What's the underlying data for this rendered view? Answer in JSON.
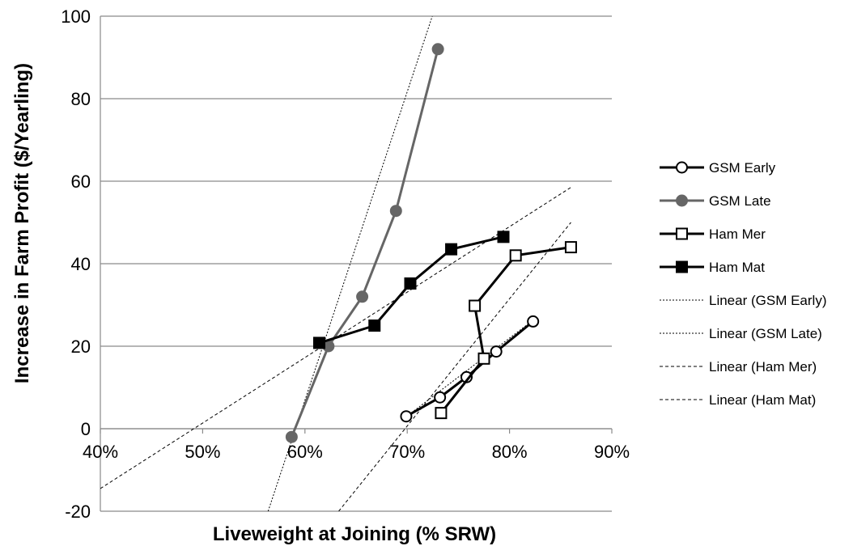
{
  "chart_data": {
    "type": "scatter",
    "xlabel": "Liveweight at Joining (% SRW)",
    "ylabel": "Increase in Farm Profit ($/Yearling)",
    "xlim": [
      0.4,
      0.9
    ],
    "ylim": [
      -20,
      100
    ],
    "x_ticks": [
      0.4,
      0.5,
      0.6,
      0.7,
      0.8,
      0.9
    ],
    "x_tick_labels": [
      "40%",
      "50%",
      "60%",
      "70%",
      "80%",
      "90%"
    ],
    "y_ticks": [
      -20,
      0,
      20,
      40,
      60,
      80,
      100
    ],
    "y_tick_labels": [
      "-20",
      "0",
      "20",
      "40",
      "60",
      "80",
      "100"
    ],
    "grid": "horizontal",
    "legend_position": "right",
    "series": [
      {
        "name": "GSM Early",
        "marker": "circle-open",
        "color": "#000000",
        "x": [
          0.699,
          0.732,
          0.758,
          0.787,
          0.823
        ],
        "y": [
          3,
          7.6,
          12.5,
          18.7,
          26
        ]
      },
      {
        "name": "GSM Late",
        "marker": "circle-filled",
        "color": "#666666",
        "x": [
          0.587,
          0.623,
          0.656,
          0.689,
          0.73
        ],
        "y": [
          -2,
          20,
          32,
          52.8,
          92
        ]
      },
      {
        "name": "Ham Mer",
        "marker": "square-open",
        "color": "#000000",
        "x": [
          0.733,
          0.775,
          0.766,
          0.806,
          0.86
        ],
        "y": [
          3.8,
          17,
          29.8,
          42,
          44
        ]
      },
      {
        "name": "Ham Mat",
        "marker": "square-filled",
        "color": "#000000",
        "x": [
          0.614,
          0.668,
          0.703,
          0.743,
          0.794
        ],
        "y": [
          20.8,
          25,
          35.2,
          43.5,
          46.5
        ]
      }
    ],
    "trendlines": [
      {
        "name": "Linear (GSM Early)",
        "style": "dotted",
        "x": [
          0.699,
          0.823
        ],
        "y": [
          2.9,
          26.3
        ]
      },
      {
        "name": "Linear (GSM Late)",
        "style": "dotted",
        "x": [
          0.564,
          0.7245
        ],
        "y": [
          -20,
          100
        ]
      },
      {
        "name": "Linear (Ham Mer)",
        "style": "dashed",
        "x": [
          0.633,
          0.86
        ],
        "y": [
          -20,
          50
        ]
      },
      {
        "name": "Linear (Ham Mat)",
        "style": "dashed",
        "x": [
          0.4,
          0.86
        ],
        "y": [
          -14.5,
          58.5
        ]
      }
    ]
  }
}
